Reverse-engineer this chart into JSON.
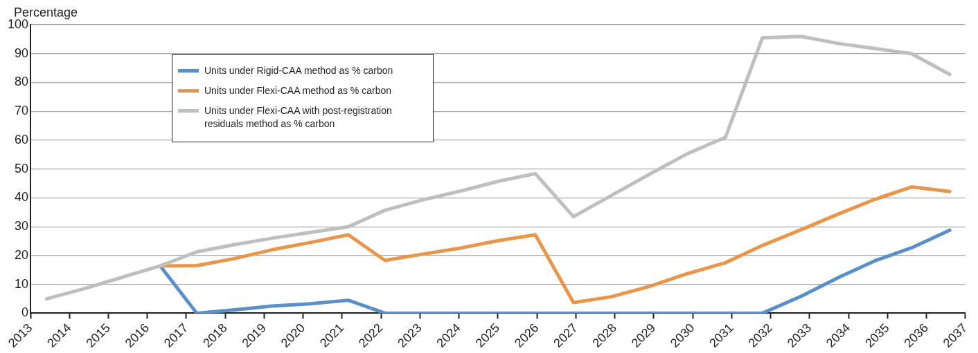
{
  "chart_data": {
    "type": "line",
    "ylabel": "Percentage",
    "xlim": [
      2013,
      2037
    ],
    "xticks": [
      2013,
      2014,
      2015,
      2016,
      2017,
      2018,
      2019,
      2020,
      2021,
      2022,
      2023,
      2024,
      2025,
      2026,
      2027,
      2028,
      2029,
      2030,
      2031,
      2032,
      2033,
      2034,
      2035,
      2036,
      2037
    ],
    "ylim": [
      0,
      100
    ],
    "yticks": [
      0,
      10,
      20,
      30,
      40,
      50,
      60,
      70,
      80,
      90,
      100
    ],
    "grid": "y",
    "legend": "top left",
    "marker": "none",
    "line_style": "solid",
    "x": [
      2013.41,
      2014.38,
      2015.36,
      2016.33,
      2017.27,
      2018.25,
      2019.2,
      2020.18,
      2021.16,
      2022.1,
      2023.07,
      2024.08,
      2025.02,
      2025.96,
      2026.94,
      2027.91,
      2028.89,
      2029.86,
      2030.84,
      2031.79,
      2032.79,
      2033.76,
      2034.68,
      2035.62,
      2036.6
    ],
    "series": [
      {
        "name": "Units under Rigid-CAA method as % carbon",
        "color": "#5b8fc9",
        "values": [
          null,
          null,
          null,
          16.4,
          0,
          1.2,
          2.5,
          3.3,
          4.5,
          0,
          0,
          0,
          0,
          0,
          0,
          0,
          0,
          0,
          0,
          0,
          5.9,
          12.5,
          18.2,
          22.7,
          28.8
        ]
      },
      {
        "name": "Units under Flexi-CAA method as % carbon",
        "color": "#e8964b",
        "values": [
          null,
          null,
          null,
          16.4,
          16.5,
          19,
          22,
          24.5,
          27.2,
          18.3,
          20.5,
          22.7,
          25.2,
          27.2,
          3.7,
          5.7,
          9.3,
          13.7,
          17.5,
          23.5,
          29,
          34.5,
          39.5,
          43.8,
          42.2
        ]
      },
      {
        "name": "Units under Flexi-CAA with post-registration residuals method as % carbon",
        "color": "#bfbfc0",
        "values": [
          5,
          8.5,
          12.5,
          16.4,
          21.3,
          23.8,
          26,
          28,
          30,
          35.7,
          39.3,
          42.5,
          45.8,
          48.4,
          33.5,
          40.8,
          48.2,
          55.3,
          61,
          95.5,
          96,
          93.5,
          91.8,
          90,
          82.8
        ]
      }
    ]
  }
}
